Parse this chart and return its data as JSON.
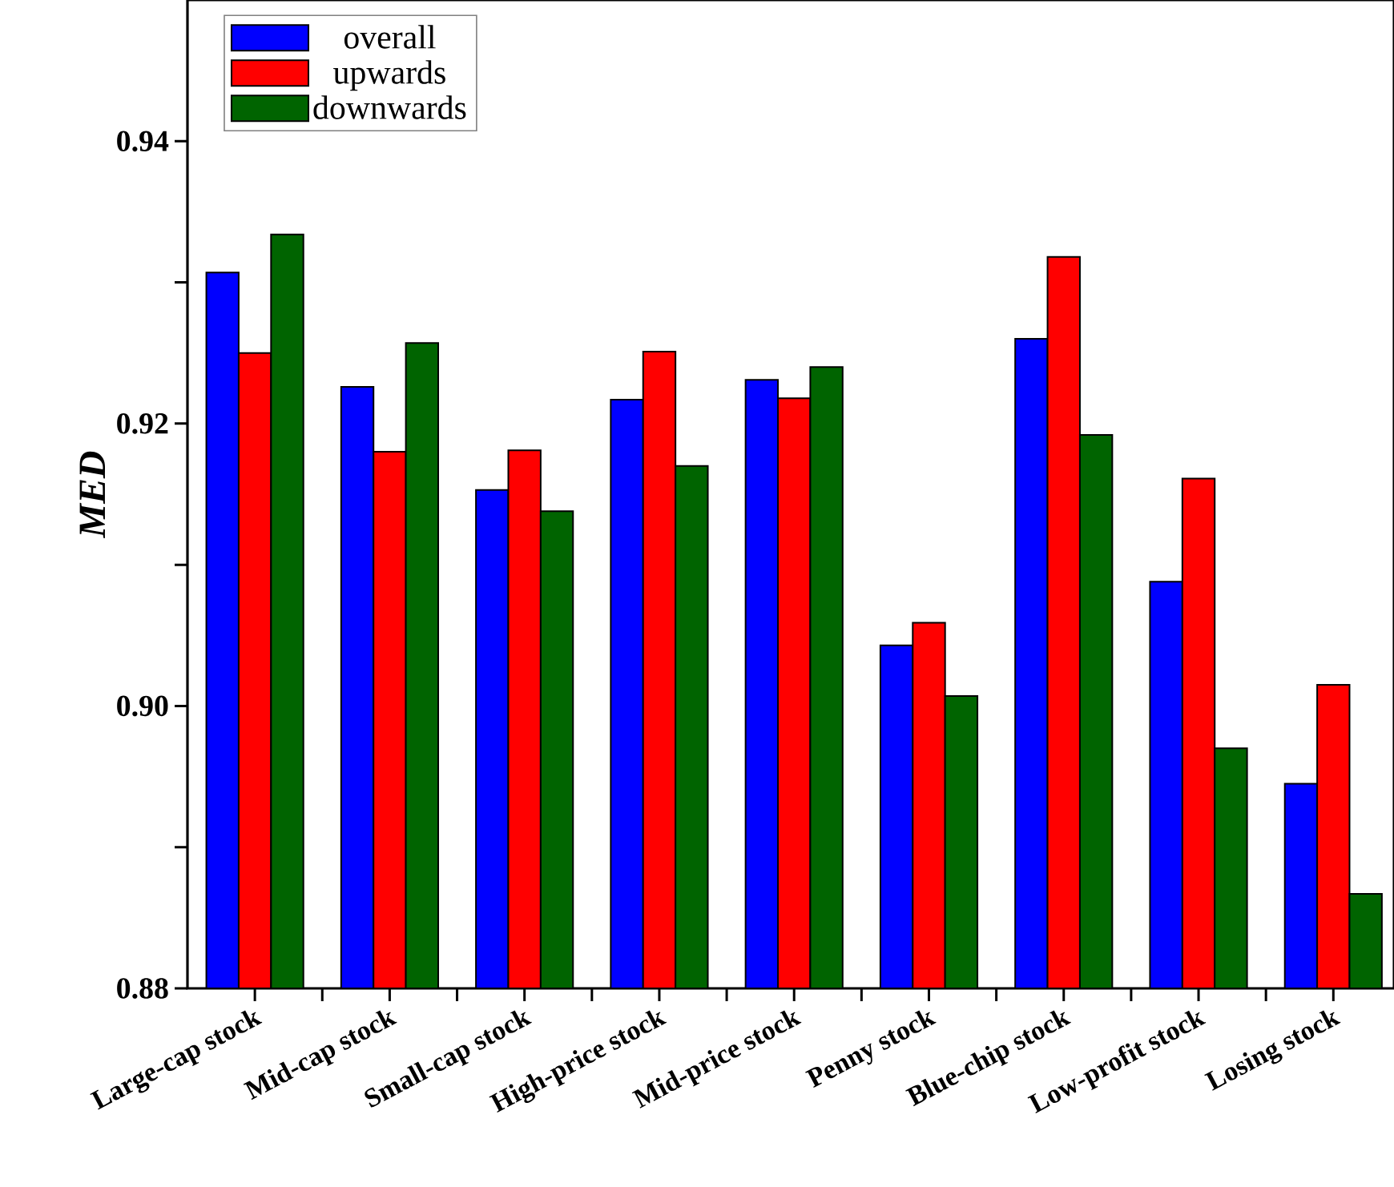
{
  "chart_data": {
    "type": "bar",
    "ylabel": "MED",
    "categories": [
      "Large-cap stock",
      "Mid-cap stock",
      "Small-cap stock",
      "High-price stock",
      "Mid-price stock",
      "Penny stock",
      "Blue-chip stock",
      "Low-profit stock",
      "Losing stock"
    ],
    "series": [
      {
        "name": "overall",
        "color": "#0000ff",
        "values": [
          0.9307,
          0.9226,
          0.9153,
          0.9217,
          0.9231,
          0.9043,
          0.926,
          0.9088,
          0.8945
        ]
      },
      {
        "name": "upwards",
        "color": "#ff0000",
        "values": [
          0.925,
          0.918,
          0.9181,
          0.9251,
          0.9218,
          0.9059,
          0.9318,
          0.9161,
          0.9015
        ]
      },
      {
        "name": "downwards",
        "color": "#006400",
        "values": [
          0.9334,
          0.9257,
          0.9138,
          0.917,
          0.924,
          0.9007,
          0.9192,
          0.897,
          0.8867
        ]
      }
    ],
    "ylim": [
      0.88,
      0.95
    ],
    "yticks": [
      0.88,
      {
        "value": 0.89,
        "label": null
      },
      {
        "value": 0.9,
        "label": "0.90"
      },
      {
        "value": 0.91,
        "label": null
      },
      0.92,
      {
        "value": 0.93,
        "label": null
      },
      0.94
    ],
    "legend": "top left"
  }
}
